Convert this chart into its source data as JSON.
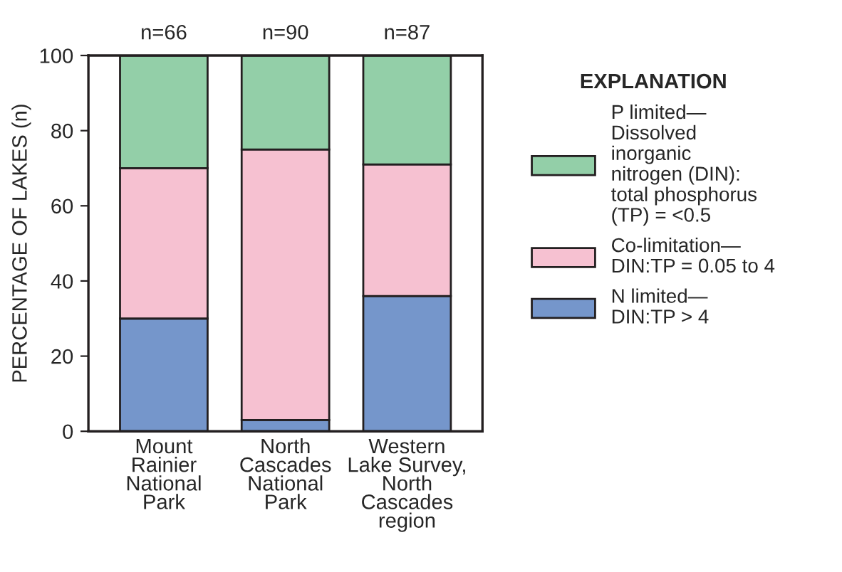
{
  "chart_data": {
    "type": "bar",
    "stacked": true,
    "ylabel": "PERCENTAGE OF LAKES (n)",
    "legend_title": "EXPLANATION",
    "categories": [
      "Mount\nRainier\nNational\nPark",
      "North\nCascades\nNational\nPark",
      "Western\nLake Survey,\nNorth\nCascades\nregion"
    ],
    "series": [
      {
        "name": "N limited—\nDIN:TP > 4",
        "color": "#7596cb",
        "values": [
          30,
          3,
          36
        ]
      },
      {
        "name": "Co-limitation—\nDIN:TP = 0.05 to 4",
        "color": "#f6c1d1",
        "values": [
          40,
          72,
          35
        ]
      },
      {
        "name": "P limited—\nDissolved\ninorganic\nnitrogen (DIN):\ntotal phosphorus\n(TP) = <0.5",
        "color": "#93cfa8",
        "values": [
          30,
          25,
          29
        ]
      }
    ],
    "annotations": [
      "n=66",
      "n=90",
      "n=87"
    ],
    "ylim": [
      0,
      100
    ],
    "yticks": [
      0,
      20,
      40,
      60,
      80,
      100
    ],
    "grid": false,
    "legend": "right"
  }
}
